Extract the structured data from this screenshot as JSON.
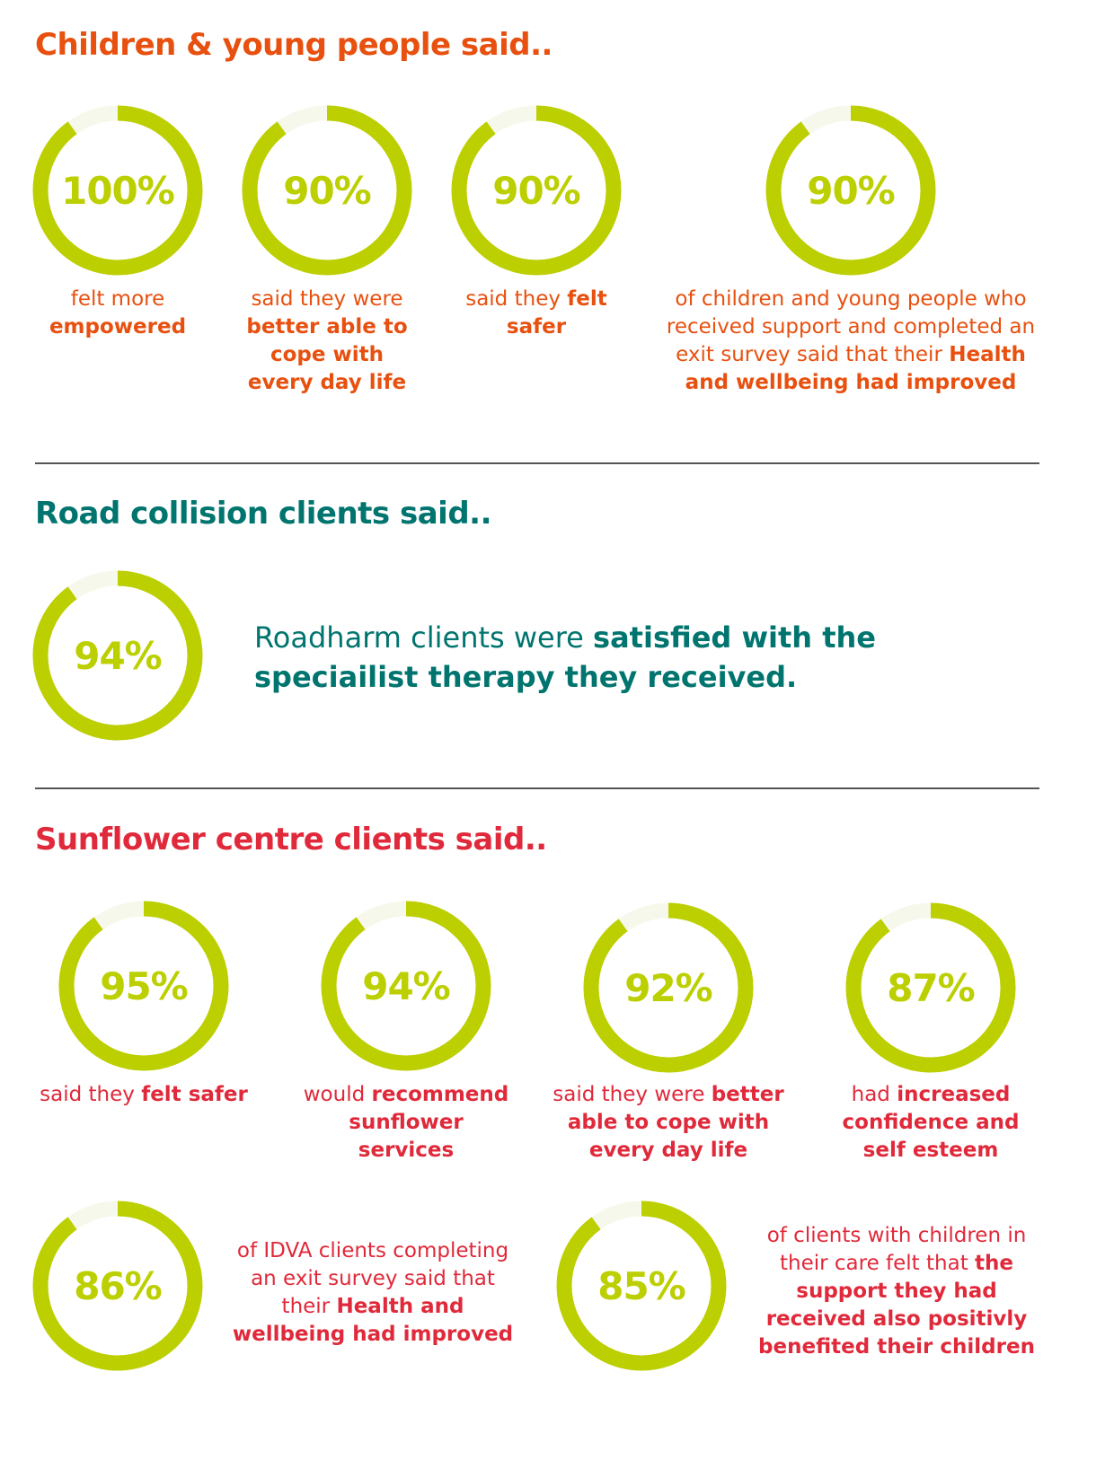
{
  "colors": {
    "children": "#e8500f",
    "road": "#00746e",
    "sunflower": "#e0293a",
    "ring": "#bccf00",
    "ring_track": "#f7f8ec"
  },
  "children": {
    "heading": "Children & young people said..",
    "stats": [
      {
        "value": "100%",
        "text": "felt more",
        "bold": "empowered",
        "after": ""
      },
      {
        "value": "90%",
        "text": "said they were",
        "bold": "better able to cope with every day life",
        "after": ""
      },
      {
        "value": "90%",
        "text": "said they",
        "bold": "felt safer",
        "after": ""
      },
      {
        "value": "90%",
        "text": "of children and young people who received support and completed an exit survey said that their",
        "bold": "Health and wellbeing had improved",
        "after": ""
      }
    ]
  },
  "road": {
    "heading": "Road collision clients said..",
    "stat": {
      "value": "94%",
      "text": "Roadharm clients were",
      "bold": "satisfied with the speciailist therapy they received."
    }
  },
  "sunflower": {
    "heading": "Sunflower centre clients said..",
    "stats": [
      {
        "value": "95%",
        "text": "said they",
        "bold": "felt safer"
      },
      {
        "value": "94%",
        "text": "would",
        "bold": "recommend sunflower services"
      },
      {
        "value": "92%",
        "text": "said they were",
        "bold": "better able to cope with every day life"
      },
      {
        "value": "87%",
        "text": "had",
        "bold": "increased confidence and self esteem"
      },
      {
        "value": "86%",
        "text": "of IDVA clients completing an exit survey said that their",
        "bold": "Health and wellbeing had improved"
      },
      {
        "value": "85%",
        "text": "of clients with children in their care felt that",
        "bold": "the support they had received also positivly benefited their children"
      }
    ]
  }
}
